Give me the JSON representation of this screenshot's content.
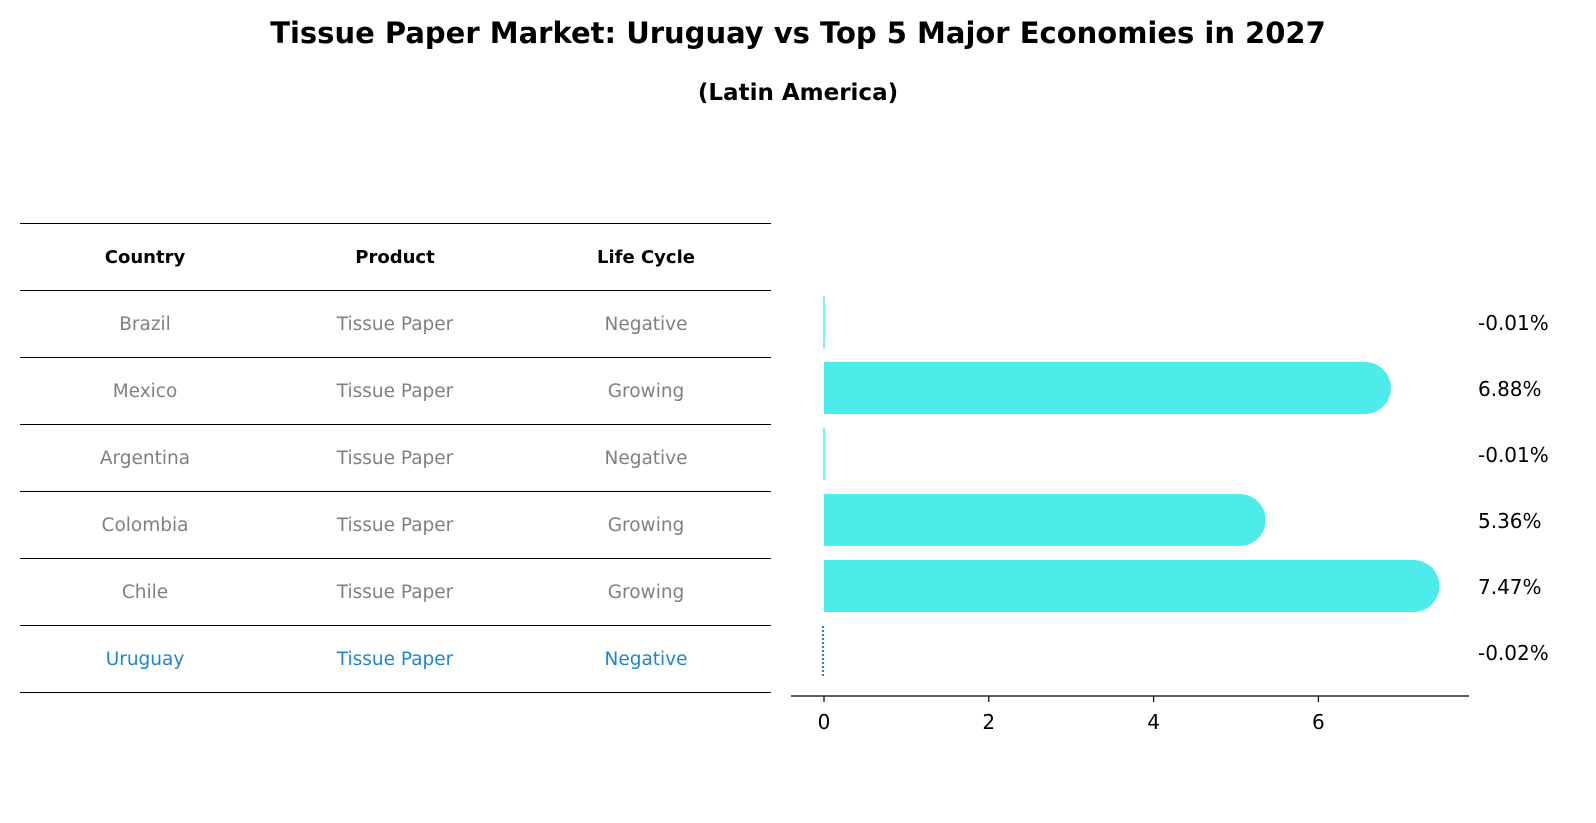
{
  "title": "Tissue Paper Market: Uruguay vs Top 5 Major Economies in 2027",
  "subtitle": "(Latin America)",
  "table": {
    "headers": [
      "Country",
      "Product",
      "Life Cycle"
    ],
    "rows": [
      {
        "country": "Brazil",
        "product": "Tissue Paper",
        "life_cycle": "Negative"
      },
      {
        "country": "Mexico",
        "product": "Tissue Paper",
        "life_cycle": "Growing"
      },
      {
        "country": "Argentina",
        "product": "Tissue Paper",
        "life_cycle": "Negative"
      },
      {
        "country": "Colombia",
        "product": "Tissue Paper",
        "life_cycle": "Growing"
      },
      {
        "country": "Chile",
        "product": "Tissue Paper",
        "life_cycle": "Growing"
      },
      {
        "country": "Uruguay",
        "product": "Tissue Paper",
        "life_cycle": "Negative"
      }
    ]
  },
  "colors": {
    "bar": "#4deceb",
    "highlight": "#1f85d0",
    "muted_text": "#808080"
  },
  "chart_data": {
    "type": "bar",
    "orientation": "horizontal",
    "categories": [
      "Brazil",
      "Mexico",
      "Argentina",
      "Colombia",
      "Chile",
      "Uruguay"
    ],
    "values": [
      -0.01,
      6.88,
      -0.01,
      5.36,
      7.47,
      -0.02
    ],
    "value_labels": [
      "-0.01%",
      "6.88%",
      "-0.01%",
      "5.36%",
      "7.47%",
      "-0.02%"
    ],
    "x_ticks": [
      "0",
      "2",
      "4",
      "6"
    ],
    "xlim": [
      -0.4,
      7.9
    ],
    "grid": false,
    "highlight_category": "Uruguay"
  }
}
